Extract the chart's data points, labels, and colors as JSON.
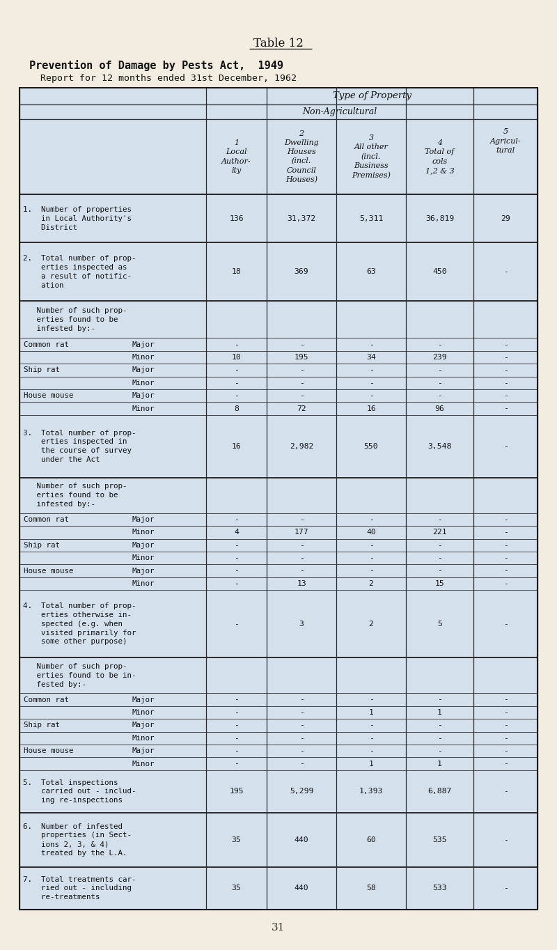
{
  "title_center": "Table 12",
  "title_bold": "Prevention of Damage by Pests Act,  1949",
  "title_sub": "Report for 12 months ended 31st December, 1962",
  "bg_color": "#f2ede0",
  "table_bg": "#d4e0ec",
  "col_headers": [
    "1\nLocal\nAuthor-\nity",
    "2\nDwelling\nHouses\n(incl.\nCouncil\nHouses)",
    "3\nAll other\n(incl.\nBusiness\nPremises)",
    "4\nTotal of\ncols\n1,2 & 3",
    "5\nAgricul-\ntural"
  ],
  "rows": [
    {
      "label": "1.  Number of properties\n    in Local Authority's\n    District",
      "sub": "",
      "vals": [
        "136",
        "31,372",
        "5,311",
        "36,819",
        "29"
      ],
      "major_border": true,
      "rh": 68
    },
    {
      "label": "2.  Total number of prop-\n    erties inspected as\n    a result of notific-\n    ation",
      "sub": "",
      "vals": [
        "18",
        "369",
        "63",
        "450",
        "-"
      ],
      "major_border": true,
      "rh": 82
    },
    {
      "label": "   Number of such prop-\n   erties found to be\n   infested by:-",
      "sub": "",
      "vals": [
        "",
        "",
        "",
        "",
        ""
      ],
      "major_border": false,
      "rh": 52
    },
    {
      "label": "Common rat",
      "sub": "Major",
      "vals": [
        "-",
        "-",
        "-",
        "-",
        "-"
      ],
      "major_border": false,
      "rh": 18
    },
    {
      "label": "",
      "sub": "Minor",
      "vals": [
        "10",
        "195",
        "34",
        "239",
        "-"
      ],
      "major_border": false,
      "rh": 18
    },
    {
      "label": "Ship rat",
      "sub": "Major",
      "vals": [
        "-",
        "-",
        "-",
        "-",
        "-"
      ],
      "major_border": false,
      "rh": 18
    },
    {
      "label": "",
      "sub": "Minor",
      "vals": [
        "-",
        "-",
        "-",
        "-",
        "-"
      ],
      "major_border": false,
      "rh": 18
    },
    {
      "label": "House mouse",
      "sub": "Major",
      "vals": [
        "-",
        "-",
        "-",
        "-",
        "-"
      ],
      "major_border": false,
      "rh": 18
    },
    {
      "label": "",
      "sub": "Minor",
      "vals": [
        "8",
        "72",
        "16",
        "96",
        "-"
      ],
      "major_border": false,
      "rh": 18
    },
    {
      "label": "3.  Total number of prop-\n    erties inspected in\n    the course of survey\n    under the Act",
      "sub": "",
      "vals": [
        "16",
        "2,982",
        "550",
        "3,548",
        "-"
      ],
      "major_border": true,
      "rh": 88
    },
    {
      "label": "   Number of such prop-\n   erties found to be\n   infested by:-",
      "sub": "",
      "vals": [
        "",
        "",
        "",
        "",
        ""
      ],
      "major_border": false,
      "rh": 50
    },
    {
      "label": "Common rat",
      "sub": "Major",
      "vals": [
        "-",
        "-",
        "-",
        "-",
        "-"
      ],
      "major_border": false,
      "rh": 18
    },
    {
      "label": "",
      "sub": "Minor",
      "vals": [
        "4",
        "177",
        "40",
        "221",
        "-"
      ],
      "major_border": false,
      "rh": 18
    },
    {
      "label": "Ship rat",
      "sub": "Major",
      "vals": [
        "-",
        "-",
        "-",
        "-",
        "-"
      ],
      "major_border": false,
      "rh": 18
    },
    {
      "label": "",
      "sub": "Minor",
      "vals": [
        "-",
        "-",
        "-",
        "-",
        "-"
      ],
      "major_border": false,
      "rh": 18
    },
    {
      "label": "House mouse",
      "sub": "Major",
      "vals": [
        "-",
        "-",
        "-",
        "-",
        "-"
      ],
      "major_border": false,
      "rh": 18
    },
    {
      "label": "",
      "sub": "Minor",
      "vals": [
        "-",
        "13",
        "2",
        "15",
        "-"
      ],
      "major_border": false,
      "rh": 18
    },
    {
      "label": "4.  Total number of prop-\n    erties otherwise in-\n    spected (e.g. when\n    visited primarily for\n    some other purpose)",
      "sub": "",
      "vals": [
        "-",
        "3",
        "2",
        "5",
        "-"
      ],
      "major_border": true,
      "rh": 95
    },
    {
      "label": "   Number of such prop-\n   erties found to be in-\n   fested by:-",
      "sub": "",
      "vals": [
        "",
        "",
        "",
        "",
        ""
      ],
      "major_border": false,
      "rh": 50
    },
    {
      "label": "Common rat",
      "sub": "Major",
      "vals": [
        "-",
        "-",
        "-",
        "-",
        "-"
      ],
      "major_border": false,
      "rh": 18
    },
    {
      "label": "",
      "sub": "Minor",
      "vals": [
        "-",
        "-",
        "1",
        "1",
        "-"
      ],
      "major_border": false,
      "rh": 18
    },
    {
      "label": "Ship rat",
      "sub": "Major",
      "vals": [
        "-",
        "-",
        "-",
        "-",
        "-"
      ],
      "major_border": false,
      "rh": 18
    },
    {
      "label": "",
      "sub": "Minor",
      "vals": [
        "-",
        "-",
        "-",
        "-",
        "-"
      ],
      "major_border": false,
      "rh": 18
    },
    {
      "label": "House mouse",
      "sub": "Major",
      "vals": [
        "-",
        "-",
        "-",
        "-",
        "-"
      ],
      "major_border": false,
      "rh": 18
    },
    {
      "label": "",
      "sub": "Minor",
      "vals": [
        "-",
        "-",
        "1",
        "1",
        "-"
      ],
      "major_border": false,
      "rh": 18
    },
    {
      "label": "5.  Total inspections\n    carried out - includ-\n    ing re-inspections",
      "sub": "",
      "vals": [
        "195",
        "5,299",
        "1,393",
        "6,887",
        "-"
      ],
      "major_border": true,
      "rh": 60
    },
    {
      "label": "6.  Number of infested\n    properties (in Sect-\n    ions 2, 3, & 4)\n    treated by the L.A.",
      "sub": "",
      "vals": [
        "35",
        "440",
        "60",
        "535",
        "-"
      ],
      "major_border": true,
      "rh": 76
    },
    {
      "label": "7.  Total treatments car-\n    ried out - including\n    re-treatments",
      "sub": "",
      "vals": [
        "35",
        "440",
        "58",
        "533",
        "-"
      ],
      "major_border": true,
      "rh": 60
    }
  ]
}
